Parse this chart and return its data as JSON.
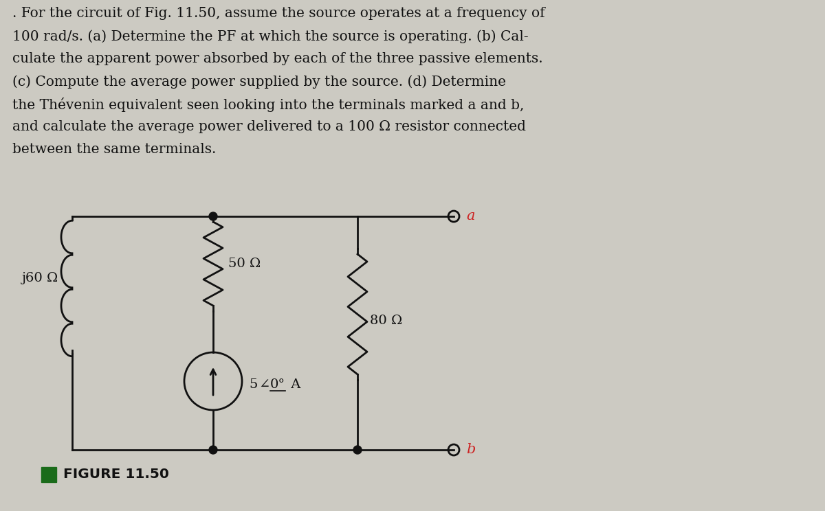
{
  "bg_color": "#cccac2",
  "text_color": "#111111",
  "title_lines": [
    ". For the circuit of Fig. 11.50, assume the source operates at a frequency of",
    "100 rad/s. (a) Determine the PF at which the source is operating. (b) Cal-",
    "culate the apparent power absorbed by each of the three passive elements.",
    "(c) Compute the average power supplied by the source. (d) Determine",
    "the Thévenin equivalent seen looking into the terminals marked a and b,",
    "and calculate the average power delivered to a 100 Ω resistor connected",
    "between the same terminals."
  ],
  "figure_label": "FIGURE 11.50",
  "figure_label_color": "#1a6b1a",
  "inductor_label": "j60 Ω",
  "resistor1_label": "50 Ω",
  "resistor2_label": "80 Ω",
  "source_label_parts": [
    "5",
    "0°",
    " A"
  ],
  "terminal_a_label": "a",
  "terminal_b_label": "b",
  "terminal_label_color": "#cc2222",
  "line_color": "#111111",
  "line_width": 2.0
}
